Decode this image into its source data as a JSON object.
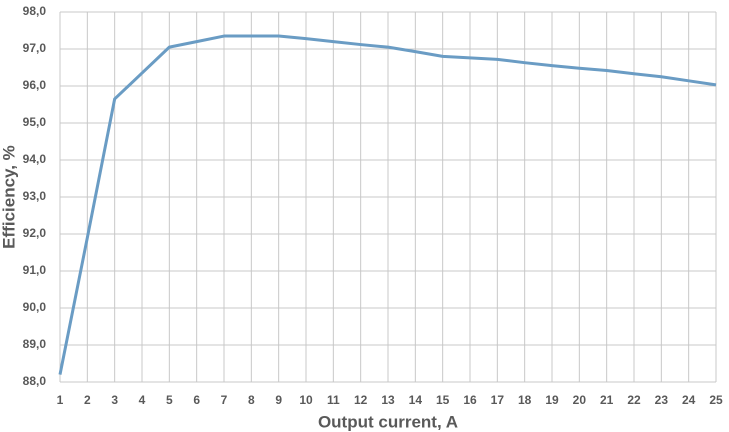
{
  "chart_data": {
    "type": "line",
    "x_label": "Output current, A",
    "y_label": "Efficiency, %",
    "x": [
      1,
      2,
      3,
      4,
      5,
      6,
      7,
      8,
      9,
      10,
      11,
      12,
      13,
      14,
      15,
      16,
      17,
      18,
      19,
      20,
      21,
      22,
      23,
      24,
      25
    ],
    "series": [
      {
        "color": "#6a9cc4",
        "values": [
          88.2,
          91.9,
          95.65,
          96.35,
          97.05,
          97.2,
          97.35,
          97.35,
          97.35,
          97.28,
          97.2,
          97.12,
          97.05,
          96.93,
          96.8,
          96.76,
          96.72,
          96.63,
          96.55,
          96.48,
          96.42,
          96.33,
          96.25,
          96.14,
          96.03
        ]
      }
    ],
    "xlim": [
      1,
      25
    ],
    "xticks": [
      1,
      2,
      3,
      4,
      5,
      6,
      7,
      8,
      9,
      10,
      11,
      12,
      13,
      14,
      15,
      16,
      17,
      18,
      19,
      20,
      21,
      22,
      23,
      24,
      25
    ],
    "ylim": [
      88,
      98
    ],
    "yticks": [
      {
        "value": 88,
        "label": "88,0"
      },
      {
        "value": 89,
        "label": "89,0"
      },
      {
        "value": 90,
        "label": "90,0"
      },
      {
        "value": 91,
        "label": "91,0"
      },
      {
        "value": 92,
        "label": "92,0"
      },
      {
        "value": 93,
        "label": "93,0"
      },
      {
        "value": 94,
        "label": "94,0"
      },
      {
        "value": 95,
        "label": "95,0"
      },
      {
        "value": 96,
        "label": "96,0"
      },
      {
        "value": 97,
        "label": "97,0"
      },
      {
        "value": 98,
        "label": "98,0"
      }
    ],
    "grid": true
  }
}
